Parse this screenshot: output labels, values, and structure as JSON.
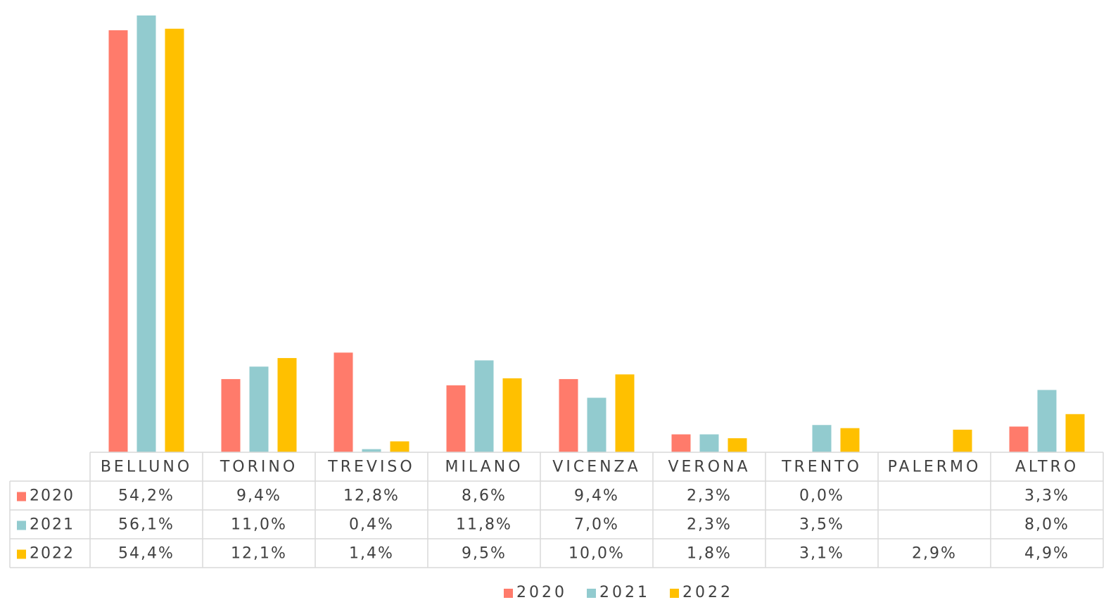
{
  "chart_data": {
    "type": "bar",
    "categories": [
      "BELLUNO",
      "TORINO",
      "TREVISO",
      "MILANO",
      "VICENZA",
      "VERONA",
      "TRENTO",
      "PALERMO",
      "ALTRO"
    ],
    "series": [
      {
        "name": "2020",
        "color": "#ff7b6b",
        "values": [
          54.2,
          9.4,
          12.8,
          8.6,
          9.4,
          2.3,
          0.0,
          null,
          3.3
        ],
        "value_labels": [
          "54,2%",
          "9,4%",
          "12,8%",
          "8,6%",
          "9,4%",
          "2,3%",
          "0,0%",
          null,
          "3,3%"
        ]
      },
      {
        "name": "2021",
        "color": "#92cbcf",
        "values": [
          56.1,
          11.0,
          0.4,
          11.8,
          7.0,
          2.3,
          3.5,
          null,
          8.0
        ],
        "value_labels": [
          "56,1%",
          "11,0%",
          "0,4%",
          "11,8%",
          "7,0%",
          "2,3%",
          "3,5%",
          null,
          "8,0%"
        ]
      },
      {
        "name": "2022",
        "color": "#ffc000",
        "values": [
          54.4,
          12.1,
          1.4,
          9.5,
          10.0,
          1.8,
          3.1,
          2.9,
          4.9
        ],
        "value_labels": [
          "54,4%",
          "12,1%",
          "1,4%",
          "9,5%",
          "10,0%",
          "1,8%",
          "3,1%",
          "2,9%",
          "4,9%"
        ]
      }
    ],
    "legend": "bottom"
  }
}
